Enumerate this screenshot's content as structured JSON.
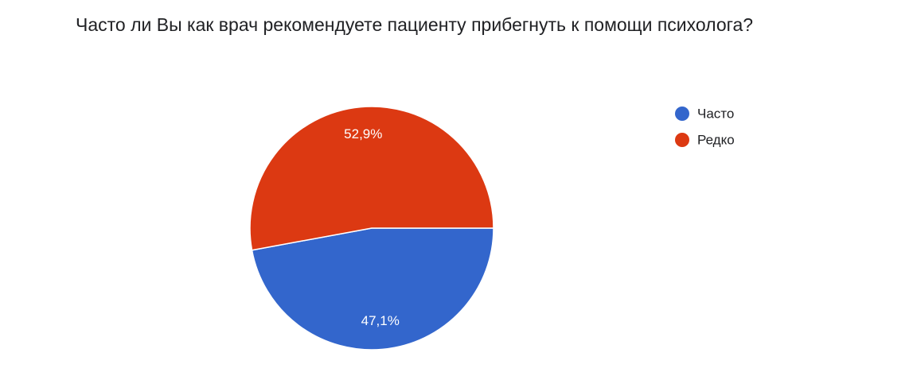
{
  "chart_data": {
    "type": "pie",
    "title": "Часто ли Вы как врач рекомендуете пациенту прибегнуть к помощи психолога?",
    "categories": [
      "Часто",
      "Редко"
    ],
    "values": [
      47.1,
      52.9
    ],
    "value_labels": [
      "47,1%",
      "52,9%"
    ],
    "colors": [
      "#3366cc",
      "#dc3912"
    ],
    "legend": "right"
  }
}
